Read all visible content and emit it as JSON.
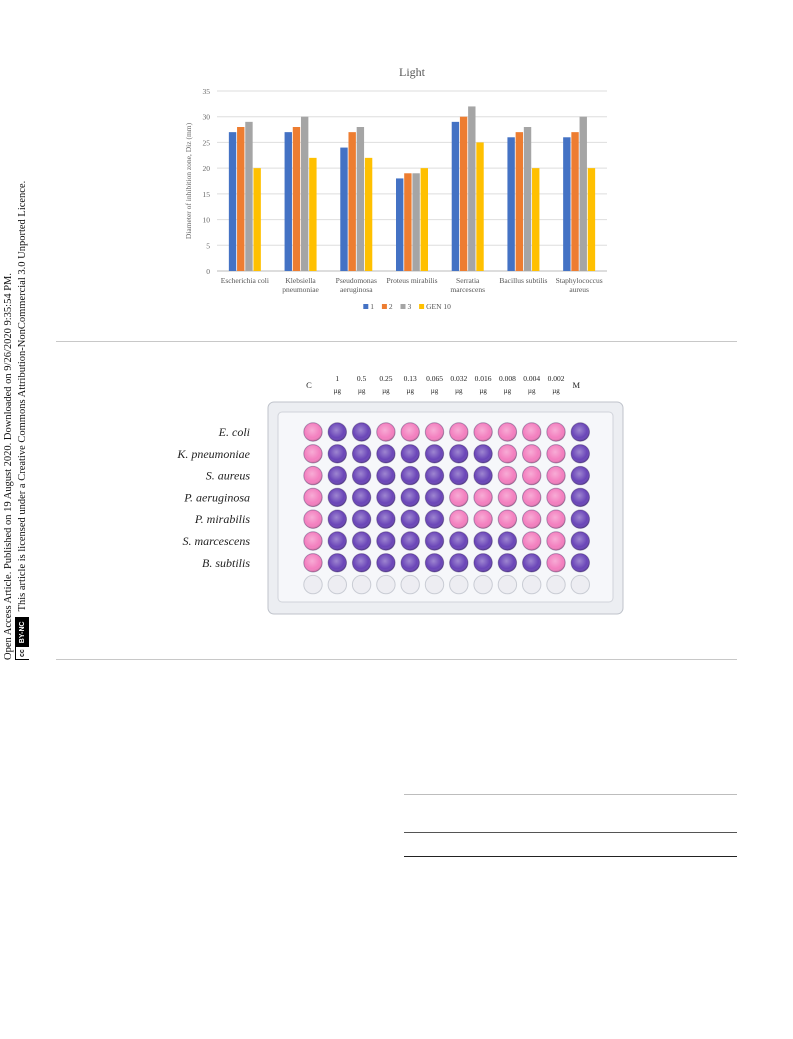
{
  "sidebar": {
    "line1": "Open Access Article. Published on 19 August 2020. Downloaded on 9/26/2020 9:35:54 PM.",
    "line2": "This article is licensed under a Creative Commons Attribution-NonCommercial 3.0 Unported Licence.",
    "badge_cc": "cc",
    "badge_by": "BY-NC"
  },
  "chart_data": {
    "type": "bar",
    "title": "Light",
    "ylabel": "Diameter of inhibition zone, Diz (mm)",
    "xlabel": "",
    "ylim": [
      0,
      35
    ],
    "yticks": [
      "0",
      "5",
      "10",
      "15",
      "20",
      "25",
      "30",
      "35"
    ],
    "grid": true,
    "legend_position": "bottom",
    "categories": [
      [
        "Escherichia coli"
      ],
      [
        "Klebsiella",
        "pneumoniae"
      ],
      [
        "Pseudomonas",
        "aeruginosa"
      ],
      [
        "Proteus mirabilis"
      ],
      [
        "Serratia",
        "marcescens"
      ],
      [
        "Bacillus subtilis"
      ],
      [
        "Staphylococcus",
        "aureus"
      ]
    ],
    "series": [
      {
        "name": "1",
        "color": "#4472C4",
        "values": [
          27,
          27,
          24,
          18,
          29,
          26,
          26
        ]
      },
      {
        "name": "2",
        "color": "#ED7D31",
        "values": [
          28,
          28,
          27,
          19,
          30,
          27,
          27
        ]
      },
      {
        "name": "3",
        "color": "#A5A5A5",
        "values": [
          29,
          30,
          28,
          19,
          32,
          28,
          30
        ]
      },
      {
        "name": "GEN 10",
        "color": "#FFC000",
        "values": [
          20,
          22,
          22,
          20,
          25,
          20,
          20
        ]
      }
    ]
  },
  "plate": {
    "col_labels": [
      [
        "C"
      ],
      [
        "1",
        "µg"
      ],
      [
        "0.5",
        "µg"
      ],
      [
        "0.25",
        "µg"
      ],
      [
        "0.13",
        "µg"
      ],
      [
        "0.065",
        "µg"
      ],
      [
        "0.032",
        "µg"
      ],
      [
        "0.016",
        "µg"
      ],
      [
        "0.008",
        "µg"
      ],
      [
        "0.004",
        "µg"
      ],
      [
        "0.002",
        "µg"
      ],
      [
        "M"
      ]
    ],
    "row_labels": [
      "E. coli",
      "K. pneumoniae",
      "S. aureus",
      "P. aeruginosa",
      "P. mirabilis",
      "S. marcescens",
      "B. subtilis"
    ],
    "colors": {
      "pink": "#F37FBF",
      "purple": "#6A45B8",
      "violet": "#9B6FD0",
      "empty": "#EDEDF2"
    },
    "wells": [
      "PVVPPPPPPPPV",
      "PVVVVVVVPPPV",
      "PVVVVVVVPPPV",
      "PVVVVVPPPPPV",
      "PVVVVVPPPPPV",
      "PVVVVVVVVPPV",
      "PVVVVVVVVVPV",
      "EEEEEEEEEEEE"
    ]
  }
}
